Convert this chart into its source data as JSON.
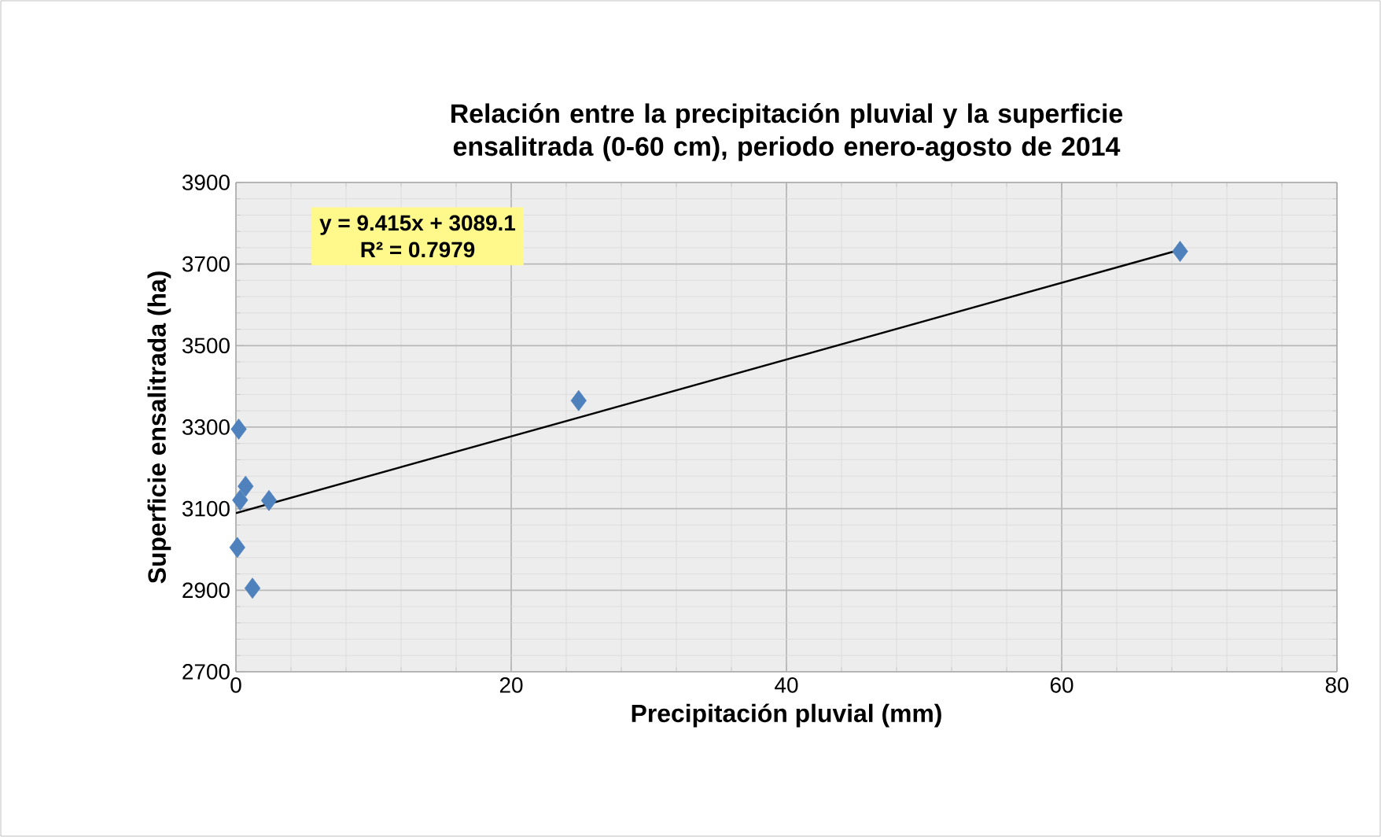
{
  "chart_data": {
    "type": "scatter",
    "title": "Relación entre la precipitación pluvial y la superficie ensalitrada (0-60 cm), periodo enero-agosto de 2014",
    "xlabel": "Precipitación pluvial (mm)",
    "ylabel": "Superficie ensalitrada (ha)",
    "series": [
      {
        "color": "#4f81bd",
        "marker": "diamond",
        "x": [
          0.2,
          0.7,
          0.3,
          2.4,
          0.1,
          1.2,
          24.9,
          68.6
        ],
        "values": [
          3295,
          3155,
          3121,
          3120,
          3005,
          2905,
          3365,
          3731
        ]
      },
      {
        "type": "line",
        "color": "#000000",
        "marker": "none",
        "x": [
          0,
          68.6
        ],
        "values": [
          3089,
          3735
        ]
      }
    ],
    "xlim": [
      0,
      80
    ],
    "xticks": [
      0,
      20,
      40,
      60,
      80
    ],
    "ylim": [
      2700,
      3900
    ],
    "yticks": [
      2700,
      2900,
      3100,
      3300,
      3500,
      3700,
      3900
    ],
    "grid": true,
    "annotations": [
      "y = 9.415x + 3089.1",
      "R² = 0.7979"
    ]
  }
}
